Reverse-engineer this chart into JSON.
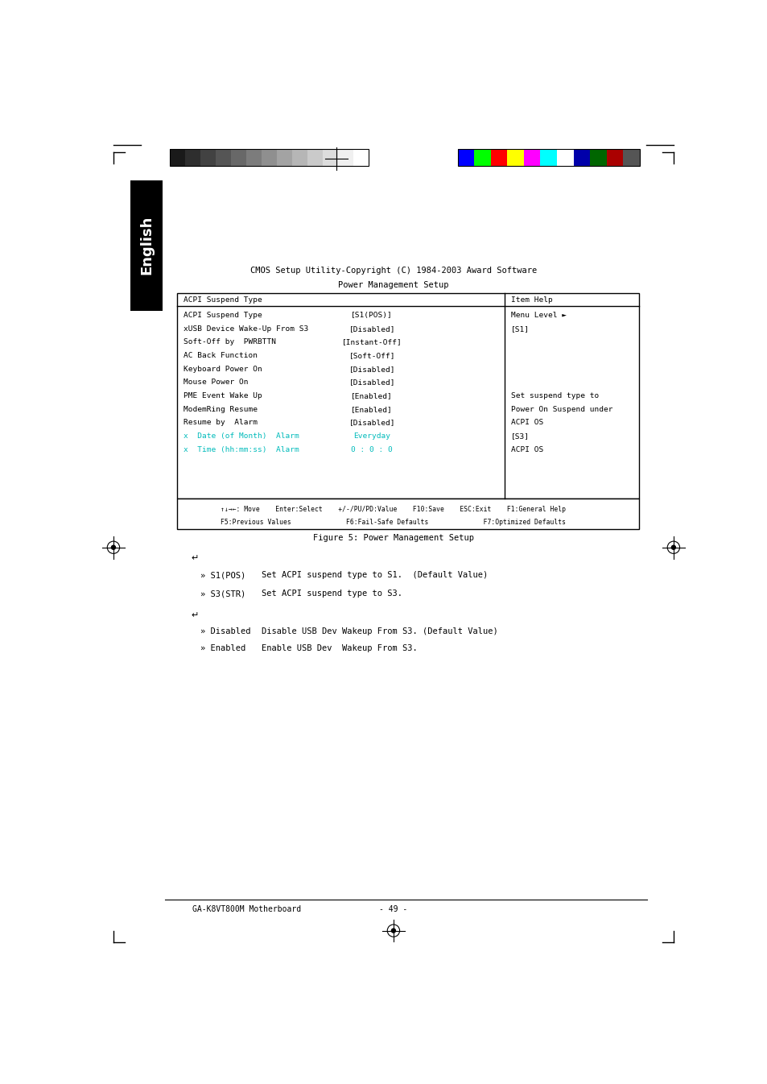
{
  "page_width": 9.54,
  "page_height": 13.46,
  "bg_color": "#ffffff",
  "header_bar_colors_gray": [
    "#1a1a1a",
    "#2e2e2e",
    "#424242",
    "#555555",
    "#686868",
    "#7c7c7c",
    "#8f8f8f",
    "#a3a3a3",
    "#b6b6b6",
    "#cacaca",
    "#dddddd",
    "#f0f0f0",
    "#ffffff"
  ],
  "header_bar_colors_color": [
    "#0000ff",
    "#00ff00",
    "#ff0000",
    "#ffff00",
    "#ff00ff",
    "#00ffff",
    "#ffffff",
    "#0000aa",
    "#006600",
    "#aa0000",
    "#555555"
  ],
  "sidebar_text": "English",
  "cmos_title": "CMOS Setup Utility-Copyright (C) 1984-2003 Award Software",
  "bios_title": "Power Management Setup",
  "table_rows": [
    [
      "ACPI Suspend Type",
      "[S1(POS)]",
      false
    ],
    [
      "xUSB Device Wake-Up From S3",
      "[Disabled]",
      false
    ],
    [
      "Soft-Off by  PWRBTTN",
      "[Instant-Off]",
      false
    ],
    [
      "AC Back Function",
      "[Soft-Off]",
      false
    ],
    [
      "Keyboard Power On",
      "[Disabled]",
      false
    ],
    [
      "Mouse Power On",
      "[Disabled]",
      false
    ],
    [
      "PME Event Wake Up",
      "[Enabled]",
      false
    ],
    [
      "ModemRing Resume",
      "[Enabled]",
      false
    ],
    [
      "Resume by  Alarm",
      "[Disabled]",
      false
    ],
    [
      "x  Date (of Month)  Alarm",
      "Everyday",
      true
    ],
    [
      "x  Time (hh:mm:ss)  Alarm",
      "0 : 0 : 0",
      true
    ]
  ],
  "help_col_title": "Item Help",
  "help_menu_level": "Menu Level ►",
  "help_s1": "[S1]",
  "help_set_suspend": "Set suspend type to",
  "help_power_on": "Power On Suspend under",
  "help_acpi_os1": "ACPI OS",
  "help_s3": "[S3]",
  "help_acpi_os2": "ACPI OS",
  "bottom_bar_line1": "↑↓→←: Move    Enter:Select    +/-/PU/PD:Value    F10:Save    ESC:Exit    F1:General Help",
  "bottom_bar_line2": "F5:Previous Values              F6:Fail-Safe Defaults              F7:Optimized Defaults",
  "figure_caption": "Figure 5: Power Management Setup",
  "bullet": "»",
  "s1pos_text": "S1(POS)",
  "s1pos_desc": "Set ACPI suspend type to S1.  (Default Value)",
  "s3str_text": "S3(STR)",
  "s3str_desc": "Set ACPI suspend type to S3.",
  "disabled_text": "Disabled",
  "disabled_desc": "Disable USB Dev Wakeup From S3. (Default Value)",
  "enabled_text": "Enabled",
  "enabled_desc": "Enable USB Dev  Wakeup From S3.",
  "footer_left": "GA-K8VT800M Motherboard",
  "footer_center": "- 49 -",
  "cyan_color": "#00bbbb",
  "black": "#000000",
  "white": "#ffffff"
}
